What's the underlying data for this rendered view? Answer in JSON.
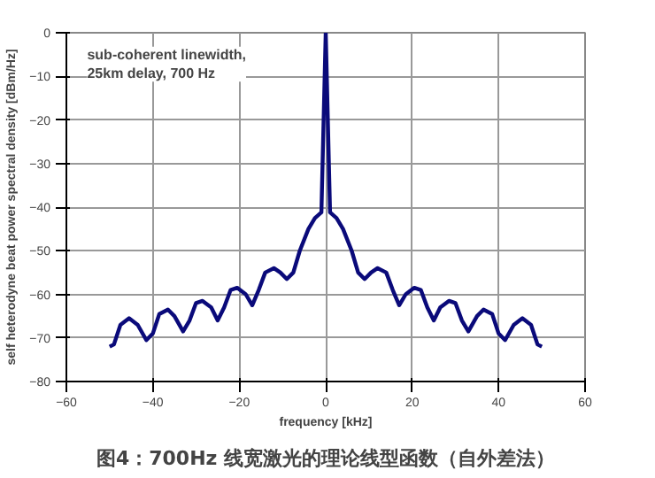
{
  "chart_data": {
    "type": "line",
    "xlabel": "frequency [kHz]",
    "ylabel": "self heterodyne beat power spectral density [dBm/Hz]",
    "annotations": [
      "sub-coherent linewidth,\n25km delay, 700 Hz",
      "图4：700Hz 线宽激光的理论线型函数（自外差法）"
    ],
    "x": [
      -50,
      -49,
      -47.5,
      -45.5,
      -43.5,
      -41.5,
      -40,
      -38.5,
      -36.5,
      -35,
      -33,
      -31.5,
      -30,
      -28.5,
      -26.5,
      -25,
      -23.5,
      -22,
      -20.5,
      -18.5,
      -17,
      -15.5,
      -14,
      -12,
      -10.5,
      -9,
      -7.5,
      -6,
      -4,
      -2.5,
      -1,
      0,
      1,
      2.5,
      4,
      6,
      7.5,
      9,
      10.5,
      12,
      14,
      15.5,
      17,
      18.5,
      20.5,
      22,
      23.5,
      25,
      26.5,
      28.5,
      30,
      31.5,
      33,
      35,
      36.5,
      38.5,
      40,
      41.5,
      43.5,
      45.5,
      47.5,
      49,
      50
    ],
    "series": [
      {
        "color": "#0a0a7a",
        "values": [
          -72,
          -71.5,
          -67,
          -65.5,
          -67,
          -70.5,
          -69,
          -64.5,
          -63.5,
          -65,
          -68.5,
          -66,
          -62,
          -61.5,
          -63,
          -66,
          -63,
          -59,
          -58.5,
          -60,
          -62.5,
          -59,
          -55,
          -54,
          -55,
          -56.5,
          -55,
          -50,
          -45,
          -42.5,
          -41.2,
          0,
          -41.2,
          -42.5,
          -45,
          -50,
          -55,
          -56.5,
          -55,
          -54,
          -55,
          -59,
          -62.5,
          -60,
          -58.5,
          -59,
          -63,
          -66,
          -63,
          -61.5,
          -62,
          -66,
          -68.5,
          -65,
          -63.5,
          -64.5,
          -69,
          -70.5,
          -67,
          -65.5,
          -67,
          -71.5,
          -72
        ]
      }
    ],
    "xlim": [
      -60,
      60
    ],
    "xticks": [
      -60,
      -40,
      -20,
      0,
      20,
      40,
      60
    ],
    "ylim": [
      -80,
      0
    ],
    "yticks": [
      -80,
      -70,
      -60,
      -50,
      -40,
      -30,
      -20,
      -10,
      0
    ],
    "grid": true,
    "marker": "none",
    "line_style": "solid"
  }
}
